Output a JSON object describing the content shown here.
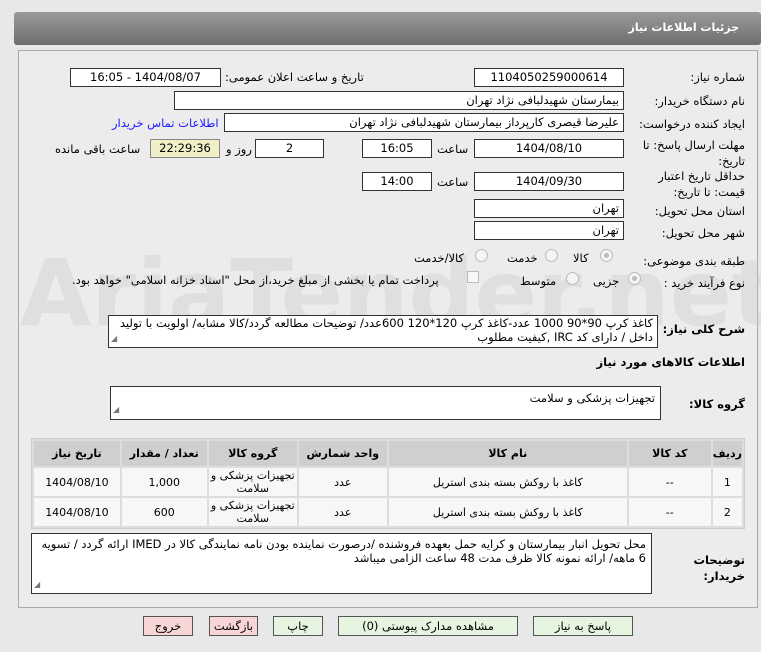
{
  "header": {
    "title": "جزئیات اطلاعات نیاز"
  },
  "form": {
    "need_number_label": "شماره نیاز:",
    "need_number": "1104050259000614",
    "announce_label": "تاریخ و ساعت اعلان عمومی:",
    "announce_value": "1404/08/07 - 16:05",
    "buyer_label": "نام دستگاه خریدار:",
    "buyer": "بیمارستان شهیدلبافی نژاد تهران",
    "creator_label": "ایجاد کننده درخواست:",
    "creator": "علیرضا قیصری کارپرداز بیمارستان شهیدلبافی نژاد تهران",
    "contact_link": "اطلاعات تماس خریدار",
    "deadline_label": "مهلت ارسال پاسخ: تا تاریخ:",
    "deadline_date": "1404/08/10",
    "time_label": "ساعت",
    "deadline_time": "16:05",
    "days": "2",
    "days_label": "روز و",
    "remaining": "22:29:36",
    "remaining_label": "ساعت باقی مانده",
    "validity_label": "حداقل تاریخ اعتبار قیمت: تا تاریخ:",
    "validity_date": "1404/09/30",
    "validity_time": "14:00",
    "province_label": "استان محل تحویل:",
    "province": "تهران",
    "city_label": "شهر محل تحویل:",
    "city": "تهران",
    "category_label": "طبقه بندی موضوعی:",
    "category_options": [
      "کالا",
      "خدمت",
      "کالا/خدمت"
    ],
    "category_selected": "کالا",
    "process_label": "نوع فرآیند خرید :",
    "process_options": [
      "جزیی",
      "متوسط"
    ],
    "process_selected": "جزیی",
    "payment_note": "پرداخت تمام یا بخشی از مبلغ خرید،از محل \"اسناد خزانه اسلامی\" خواهد بود.",
    "description_label": "شرح کلی نیاز:",
    "description": "کاغذ کرپ  90*90  1000 عدد-کاغذ کرپ 120*120  600عدد/ توضیحات مطالعه گردد/کالا مشابه/ اولویت با تولید داخل / دارای کد IRC ,کیفیت مطلوب",
    "goods_info_title": "اطلاعات کالاهای مورد نیاز",
    "goods_group_label": "گروه کالا:",
    "goods_group": "تجهیزات پزشکی و سلامت"
  },
  "table": {
    "headers": [
      "ردیف",
      "کد کالا",
      "نام کالا",
      "واحد شمارش",
      "گروه کالا",
      "تعداد / مقدار",
      "تاریخ نیاز"
    ],
    "rows": [
      [
        "1",
        "--",
        "کاغذ با روکش بسته بندی استریل",
        "عدد",
        "تجهیزات پزشکی و سلامت",
        "1,000",
        "1404/08/10"
      ],
      [
        "2",
        "--",
        "کاغذ با روکش بسته بندی استریل",
        "عدد",
        "تجهیزات پزشکی و سلامت",
        "600",
        "1404/08/10"
      ]
    ]
  },
  "notes": {
    "label": "توضیحات خریدار:",
    "text": "محل تحویل انبار بیمارستان و کرایه حمل بعهده فروشنده /درصورت نماینده بودن نامه نمایندگی کالا در  IMED ارائه گردد / تسویه 6 ماهه/ ارائه نمونه کالا ظرف مدت 48 ساعت الزامی میباشد"
  },
  "buttons": {
    "reply": "پاسخ به نیاز",
    "attachments": "مشاهده مدارک پیوستی (0)",
    "print": "چاپ",
    "back": "بازگشت",
    "exit": "خروج"
  },
  "watermark": "AriaTender.net"
}
